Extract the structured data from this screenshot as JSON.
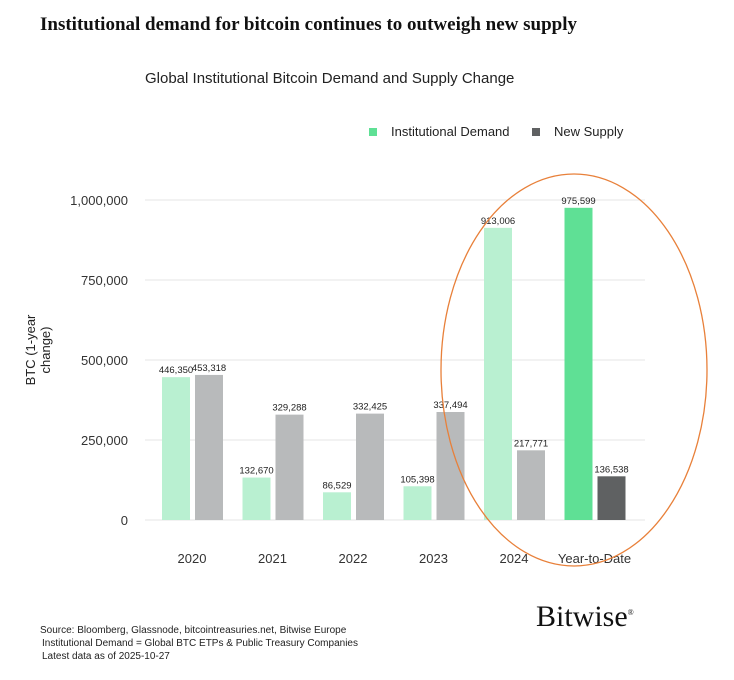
{
  "headline": "Institutional demand for bitcoin continues to outweigh new supply",
  "chart_data": {
    "type": "bar",
    "title": "Global Institutional Bitcoin Demand and Supply Change",
    "ylabel": "BTC (1-year change)",
    "xlabel": "",
    "categories": [
      "2020",
      "2021",
      "2022",
      "2023",
      "2024",
      "Year-to-Date"
    ],
    "series": [
      {
        "name": "Institutional Demand",
        "values": [
          446350,
          132670,
          86529,
          105398,
          913006,
          975599
        ],
        "labels": [
          "446,350",
          "132,670",
          "86,529",
          "105,398",
          "913,006",
          "975,599"
        ]
      },
      {
        "name": "New Supply",
        "values": [
          453318,
          329288,
          332425,
          337494,
          217771,
          136538
        ],
        "labels": [
          "453,318",
          "329,288",
          "332,425",
          "337,494",
          "217,771",
          "136,538"
        ]
      }
    ],
    "ylim": [
      0,
      1000000
    ],
    "yticks": [
      0,
      250000,
      500000,
      750000,
      1000000
    ],
    "ytick_labels": [
      "0",
      "250,000",
      "500,000",
      "750,000",
      "1,000,000"
    ],
    "grid": true,
    "legend": "top-right",
    "highlight": "ellipse around 2024 and Year-to-Date",
    "colors": {
      "demand": "#b9f0d1",
      "demand_ytd": "#5fe095",
      "supply": "#b8babb",
      "supply_ytd": "#5f6162",
      "highlight": "#e8803a",
      "grid": "#e6e6e6"
    }
  },
  "footer": {
    "source": "Source: Bloomberg, Glassnode, bitcointreasuries.net, Bitwise Europe",
    "definition": "Institutional Demand = Global BTC ETPs & Public Treasury Companies",
    "date": "Latest data as of 2025-10-27"
  },
  "brand": "Bitwise"
}
